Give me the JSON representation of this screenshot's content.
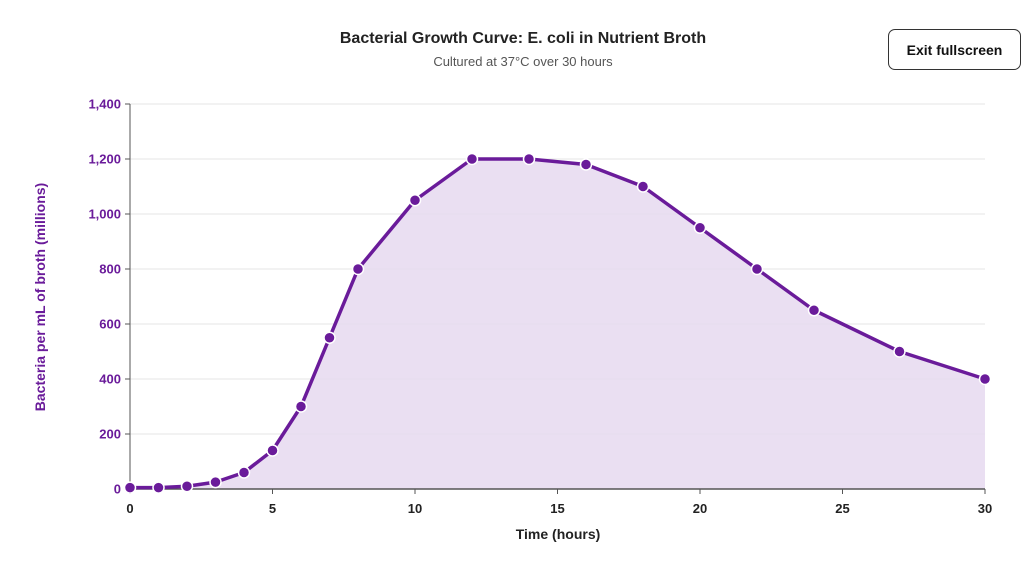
{
  "header": {
    "exit_button_label": "Exit fullscreen"
  },
  "colors": {
    "line": "#6a1b9a",
    "area": "#e6d9f0",
    "grid": "#e6e6e6",
    "axis": "#555555"
  },
  "chart_data": {
    "type": "area",
    "title": "Bacterial Growth Curve: E. coli in Nutrient Broth",
    "subtitle": "Cultured at 37°C over 30 hours",
    "xlabel": "Time (hours)",
    "ylabel": "Bacteria per mL of broth (millions)",
    "xlim": [
      0,
      30
    ],
    "ylim": [
      0,
      1400
    ],
    "x_ticks": [
      0,
      5,
      10,
      15,
      20,
      25,
      30
    ],
    "y_ticks": [
      0,
      200,
      400,
      600,
      800,
      1000,
      1200,
      1400
    ],
    "x_tick_labels": [
      "0",
      "5",
      "10",
      "15",
      "20",
      "25",
      "30"
    ],
    "y_tick_labels": [
      "0",
      "200",
      "400",
      "600",
      "800",
      "1,000",
      "1,200",
      "1,400"
    ],
    "grid": true,
    "series": [
      {
        "x": [
          0,
          1,
          2,
          3,
          4,
          5,
          6,
          7,
          8,
          10,
          12,
          14,
          16,
          18,
          20,
          22,
          24,
          27,
          30
        ],
        "values": [
          5,
          5,
          10,
          25,
          60,
          140,
          300,
          550,
          800,
          1050,
          1200,
          1200,
          1180,
          1100,
          950,
          800,
          650,
          500,
          400
        ]
      }
    ]
  }
}
